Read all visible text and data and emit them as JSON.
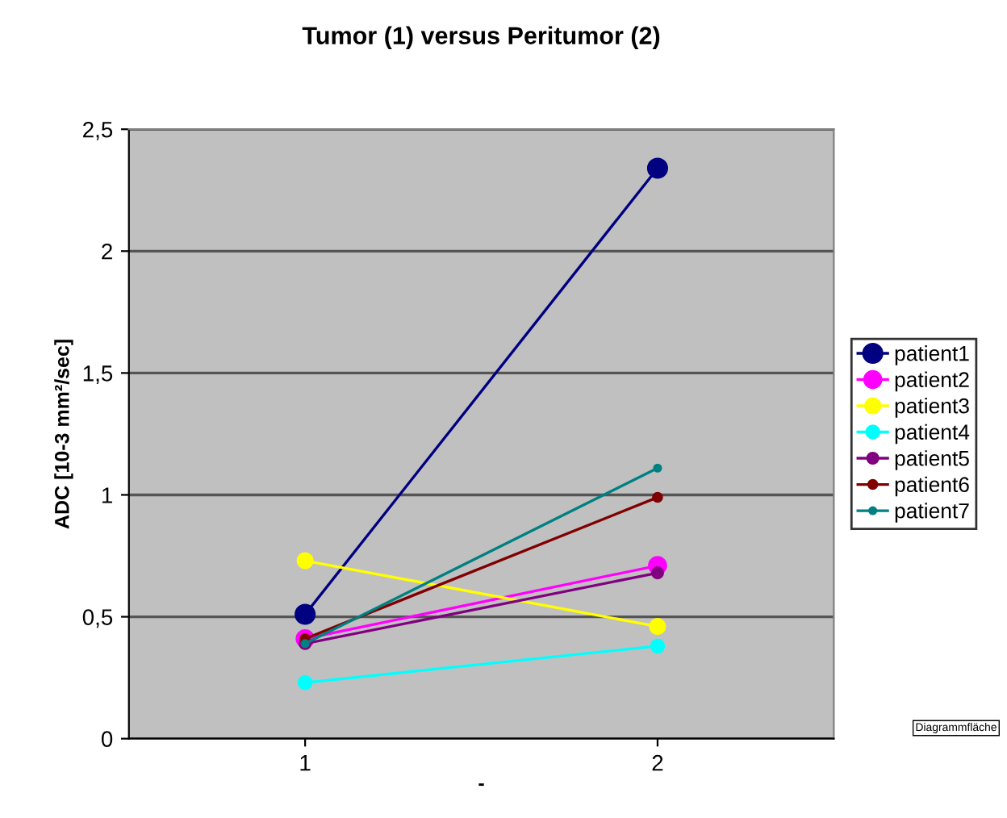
{
  "chart_data": {
    "type": "line",
    "title": "Tumor (1) versus Peritumor (2)",
    "xlabel": "-",
    "ylabel": "ADC [10-3 mm²/sec]",
    "categories": [
      "1",
      "2"
    ],
    "series": [
      {
        "name": "patient1",
        "color": "#000080",
        "values": [
          0.51,
          2.34
        ]
      },
      {
        "name": "patient2",
        "color": "#ff00ff",
        "values": [
          0.41,
          0.71
        ]
      },
      {
        "name": "patient3",
        "color": "#ffff00",
        "values": [
          0.73,
          0.46
        ]
      },
      {
        "name": "patient4",
        "color": "#00ffff",
        "values": [
          0.23,
          0.38
        ]
      },
      {
        "name": "patient5",
        "color": "#800080",
        "values": [
          0.39,
          0.68
        ]
      },
      {
        "name": "patient6",
        "color": "#800000",
        "values": [
          0.41,
          0.99
        ]
      },
      {
        "name": "patient7",
        "color": "#008080",
        "values": [
          0.39,
          1.11
        ]
      }
    ],
    "ylim": [
      0,
      2.5
    ],
    "yticks": [
      {
        "value": 0,
        "label": "0"
      },
      {
        "value": 0.5,
        "label": "0,5"
      },
      {
        "value": 1,
        "label": "1"
      },
      {
        "value": 1.5,
        "label": "1,5"
      },
      {
        "value": 2,
        "label": "2"
      },
      {
        "value": 2.5,
        "label": "2,5"
      }
    ],
    "grid": "y",
    "legend": "right",
    "marker": "circle",
    "line_style": "solid",
    "annotations": [
      "Diagrammfläche"
    ]
  }
}
